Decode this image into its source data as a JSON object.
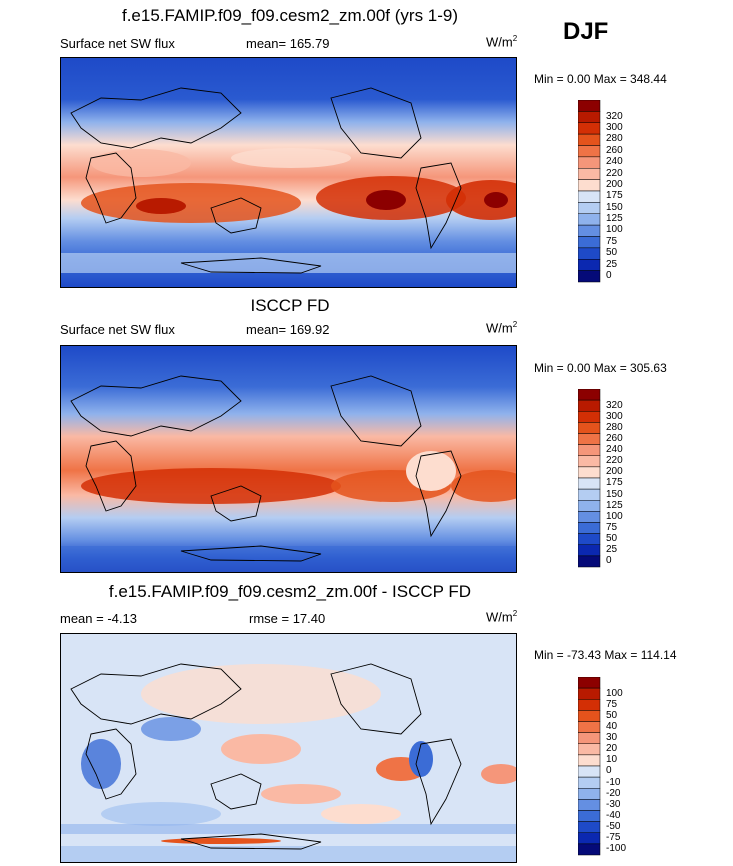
{
  "season": "DJF",
  "unit_base": "W/m",
  "unit_exp": "2",
  "panel1": {
    "title": "f.e15.FAMIP.f09_f09.cesm2_zm.00f (yrs 1-9)",
    "left_label": "Surface net SW flux",
    "mean": "mean= 165.79",
    "minmax": "Min =   0.00 Max = 348.44",
    "levels": [
      "320",
      "300",
      "280",
      "260",
      "240",
      "220",
      "200",
      "175",
      "150",
      "125",
      "100",
      "75",
      "50",
      "25",
      "0"
    ],
    "colors": [
      "#8c0000",
      "#b81a00",
      "#d32f05",
      "#e4531c",
      "#ef7346",
      "#f5967a",
      "#fab9a4",
      "#fdddcf",
      "#d8e4f6",
      "#b4cdf2",
      "#8fb2ec",
      "#648fe2",
      "#3b6cd6",
      "#1e4ac8",
      "#0b28b0",
      "#050a78"
    ]
  },
  "panel2": {
    "title": "ISCCP FD",
    "left_label": "Surface net SW flux",
    "mean": "mean= 169.92",
    "minmax": "Min =   0.00 Max = 305.63",
    "levels": [
      "320",
      "300",
      "280",
      "260",
      "240",
      "220",
      "200",
      "175",
      "150",
      "125",
      "100",
      "75",
      "50",
      "25",
      "0"
    ],
    "colors": [
      "#8c0000",
      "#b81a00",
      "#d32f05",
      "#e4531c",
      "#ef7346",
      "#f5967a",
      "#fab9a4",
      "#fdddcf",
      "#d8e4f6",
      "#b4cdf2",
      "#8fb2ec",
      "#648fe2",
      "#3b6cd6",
      "#1e4ac8",
      "#0b28b0",
      "#050a78"
    ]
  },
  "panel3": {
    "title": "f.e15.FAMIP.f09_f09.cesm2_zm.00f - ISCCP FD",
    "mean": "mean =  -4.13",
    "rmse": "rmse =  17.40",
    "unit_text": "W/m",
    "minmax": "Min = -73.43 Max = 114.14",
    "levels": [
      "100",
      "75",
      "50",
      "40",
      "30",
      "20",
      "10",
      "0",
      "-10",
      "-20",
      "-30",
      "-40",
      "-50",
      "-75",
      "-100"
    ],
    "colors": [
      "#8c0000",
      "#b81a00",
      "#d32f05",
      "#e4531c",
      "#ef7346",
      "#f5967a",
      "#fab9a4",
      "#fdddcf",
      "#d8e4f6",
      "#b4cdf2",
      "#8fb2ec",
      "#648fe2",
      "#3b6cd6",
      "#1e4ac8",
      "#0b28b0",
      "#050a78"
    ]
  }
}
